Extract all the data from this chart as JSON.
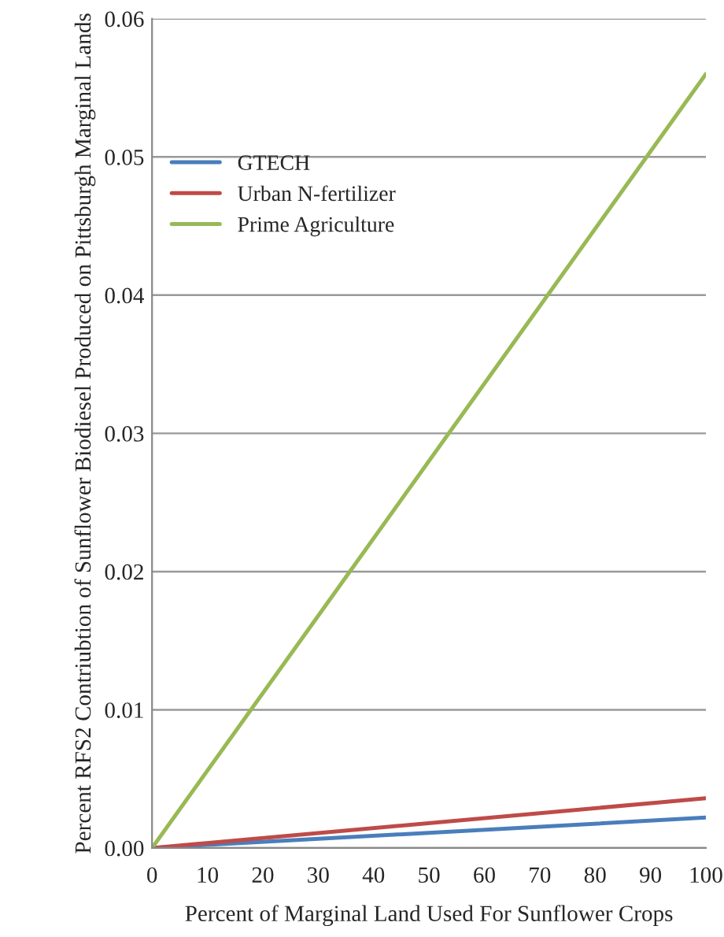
{
  "chart_data": {
    "type": "line",
    "xlabel": "Percent of Marginal Land Used For Sunflower Crops",
    "ylabel": "Percent RFS2 Contriubtion of Sunflower Biodiesel Produced on Pittsburgh Marginal Lands",
    "x": [
      0,
      100
    ],
    "series": [
      {
        "name": "GTECH",
        "color": "#4a7ebb",
        "values": [
          0,
          0.0022
        ]
      },
      {
        "name": "Urban N-fertilizer",
        "color": "#be4b48",
        "values": [
          0,
          0.0036
        ]
      },
      {
        "name": "Prime Agriculture",
        "color": "#98b954",
        "values": [
          0,
          0.056
        ]
      }
    ],
    "xlim": [
      0,
      100
    ],
    "xticks": [
      0,
      10,
      20,
      30,
      40,
      50,
      60,
      70,
      80,
      90,
      100
    ],
    "ylim": [
      0,
      0.06
    ],
    "yticks": [
      {
        "value": 0,
        "label": "0.00"
      },
      {
        "value": 0.01,
        "label": "0.01"
      },
      {
        "value": 0.02,
        "label": "0.02"
      },
      {
        "value": 0.03,
        "label": "0.03"
      },
      {
        "value": 0.04,
        "label": "0.04"
      },
      {
        "value": 0.05,
        "label": "0.05"
      },
      {
        "value": 0.06,
        "label": "0.06"
      }
    ],
    "grid": "y",
    "legend": "top left",
    "marker": "none",
    "line_style": "solid"
  }
}
